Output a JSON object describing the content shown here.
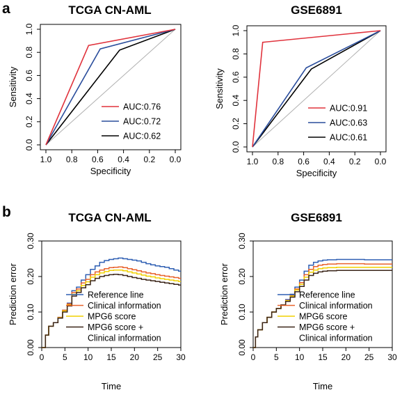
{
  "panel_labels": [
    "a",
    "b"
  ],
  "chart_data": [
    {
      "type": "line",
      "panel": "a",
      "title": "TCGA CN-AML",
      "xlabel": "Specificity",
      "ylabel": "Sensitivity",
      "xlim": [
        1.0,
        0.0
      ],
      "ylim": [
        0.0,
        1.0
      ],
      "xticks": [
        "1.0",
        "0.8",
        "0.6",
        "0.4",
        "0.2",
        "0.0"
      ],
      "yticks": [
        "0.0",
        "0.2",
        "0.4",
        "0.6",
        "0.8",
        "1.0"
      ],
      "legend_position": "bottom-right",
      "reference_diagonal": true,
      "series": [
        {
          "name": "AUC:0.76",
          "color": "#e0323c",
          "x": [
            1.0,
            0.67,
            0.0
          ],
          "y": [
            0.0,
            0.86,
            1.0
          ]
        },
        {
          "name": "AUC:0.72",
          "color": "#2a4d9c",
          "x": [
            1.0,
            0.58,
            0.0
          ],
          "y": [
            0.0,
            0.83,
            1.0
          ]
        },
        {
          "name": "AUC:0.62",
          "color": "#000000",
          "x": [
            1.0,
            0.43,
            0.0
          ],
          "y": [
            0.0,
            0.82,
            1.0
          ]
        }
      ]
    },
    {
      "type": "line",
      "panel": "a",
      "title": "GSE6891",
      "xlabel": "Specificity",
      "ylabel": "Sensitivity",
      "xlim": [
        1.0,
        0.0
      ],
      "ylim": [
        0.0,
        1.0
      ],
      "xticks": [
        "1.0",
        "0.8",
        "0.6",
        "0.4",
        "0.2",
        "0.0"
      ],
      "yticks": [
        "0.0",
        "0.2",
        "0.4",
        "0.6",
        "0.8",
        "1.0"
      ],
      "legend_position": "bottom-right",
      "reference_diagonal": true,
      "series": [
        {
          "name": "AUC:0.91",
          "color": "#e0323c",
          "x": [
            1.0,
            0.92,
            0.0
          ],
          "y": [
            0.0,
            0.9,
            1.0
          ]
        },
        {
          "name": "AUC:0.63",
          "color": "#2a4d9c",
          "x": [
            1.0,
            0.58,
            0.0
          ],
          "y": [
            0.0,
            0.68,
            1.0
          ]
        },
        {
          "name": "AUC:0.61",
          "color": "#000000",
          "x": [
            1.0,
            0.54,
            0.0
          ],
          "y": [
            0.0,
            0.67,
            1.0
          ]
        }
      ]
    },
    {
      "type": "line",
      "panel": "b",
      "title": "TCGA CN-AML",
      "xlabel": "Time",
      "ylabel": "Prediction error",
      "xlim": [
        0,
        30
      ],
      "ylim": [
        0.0,
        0.3
      ],
      "xticks": [
        "0",
        "5",
        "10",
        "15",
        "20",
        "25",
        "30"
      ],
      "yticks": [
        "0.00",
        "0.10",
        "0.20",
        "0.30"
      ],
      "legend_position": "bottom-right",
      "series": [
        {
          "name": "Reference line",
          "color": "#2f5fb3",
          "x": [
            0,
            0.8,
            1.5,
            2.5,
            3.5,
            4.5,
            5.5,
            6.5,
            7.5,
            8.5,
            9.5,
            10.5,
            11.5,
            12.5,
            13.5,
            14.5,
            15.5,
            16.5,
            17.5,
            18.5,
            19.5,
            20.5,
            21.5,
            22.5,
            23.5,
            24.5,
            25.5,
            26.5,
            27.5,
            28.5,
            29.5,
            30
          ],
          "y": [
            0.0,
            0.035,
            0.06,
            0.07,
            0.085,
            0.105,
            0.125,
            0.16,
            0.17,
            0.19,
            0.205,
            0.22,
            0.23,
            0.24,
            0.245,
            0.248,
            0.25,
            0.252,
            0.25,
            0.248,
            0.246,
            0.244,
            0.24,
            0.236,
            0.233,
            0.23,
            0.228,
            0.226,
            0.222,
            0.218,
            0.215,
            0.215
          ]
        },
        {
          "name": "Clinical information",
          "color": "#e8622c",
          "x": [
            0,
            0.8,
            1.5,
            2.5,
            3.5,
            4.5,
            5.5,
            6.5,
            7.5,
            8.5,
            9.5,
            10.5,
            11.5,
            12.5,
            13.5,
            14.5,
            15.5,
            16.5,
            17.5,
            18.5,
            19.5,
            20.5,
            21.5,
            22.5,
            23.5,
            24.5,
            25.5,
            26.5,
            27.5,
            28.5,
            29.5,
            30
          ],
          "y": [
            0.0,
            0.035,
            0.06,
            0.07,
            0.085,
            0.105,
            0.123,
            0.155,
            0.165,
            0.182,
            0.192,
            0.205,
            0.213,
            0.218,
            0.222,
            0.225,
            0.226,
            0.227,
            0.225,
            0.222,
            0.219,
            0.216,
            0.213,
            0.21,
            0.208,
            0.205,
            0.203,
            0.201,
            0.199,
            0.197,
            0.195,
            0.195
          ]
        },
        {
          "name": "MPG6 score",
          "color": "#f0d000",
          "x": [
            0,
            0.8,
            1.5,
            2.5,
            3.5,
            4.5,
            5.5,
            6.5,
            7.5,
            8.5,
            9.5,
            10.5,
            11.5,
            12.5,
            13.5,
            14.5,
            15.5,
            16.5,
            17.5,
            18.5,
            19.5,
            20.5,
            21.5,
            22.5,
            23.5,
            24.5,
            25.5,
            26.5,
            27.5,
            28.5,
            29.5,
            30
          ],
          "y": [
            0.0,
            0.035,
            0.06,
            0.07,
            0.084,
            0.103,
            0.12,
            0.15,
            0.16,
            0.175,
            0.185,
            0.198,
            0.205,
            0.21,
            0.214,
            0.217,
            0.218,
            0.218,
            0.216,
            0.213,
            0.21,
            0.207,
            0.204,
            0.201,
            0.199,
            0.196,
            0.194,
            0.192,
            0.19,
            0.188,
            0.186,
            0.186
          ]
        },
        {
          "name": "MPG6 score + Clinical information",
          "color": "#3a2418",
          "x": [
            0,
            0.8,
            1.5,
            2.5,
            3.5,
            4.5,
            5.5,
            6.5,
            7.5,
            8.5,
            9.5,
            10.5,
            11.5,
            12.5,
            13.5,
            14.5,
            15.5,
            16.5,
            17.5,
            18.5,
            19.5,
            20.5,
            21.5,
            22.5,
            23.5,
            24.5,
            25.5,
            26.5,
            27.5,
            28.5,
            29.5,
            30
          ],
          "y": [
            0.0,
            0.035,
            0.06,
            0.07,
            0.083,
            0.1,
            0.117,
            0.145,
            0.155,
            0.168,
            0.177,
            0.188,
            0.195,
            0.2,
            0.203,
            0.205,
            0.206,
            0.205,
            0.203,
            0.2,
            0.197,
            0.195,
            0.192,
            0.19,
            0.188,
            0.186,
            0.184,
            0.182,
            0.18,
            0.178,
            0.176,
            0.176
          ]
        }
      ]
    },
    {
      "type": "line",
      "panel": "b",
      "title": "GSE6891",
      "xlabel": "Time",
      "ylabel": "Prediction error",
      "xlim": [
        0,
        30
      ],
      "ylim": [
        0.0,
        0.3
      ],
      "xticks": [
        "0",
        "5",
        "10",
        "15",
        "20",
        "25",
        "30"
      ],
      "yticks": [
        "0.00",
        "0.10",
        "0.20",
        "0.30"
      ],
      "legend_position": "bottom-right",
      "series": [
        {
          "name": "Reference line",
          "color": "#2f5fb3",
          "x": [
            0,
            0.5,
            1,
            2,
            3,
            4,
            5,
            6,
            7,
            8,
            9,
            10,
            11,
            12,
            13,
            14,
            15,
            16,
            18,
            20,
            22,
            24,
            26,
            28,
            30
          ],
          "y": [
            0.0,
            0.03,
            0.05,
            0.07,
            0.085,
            0.1,
            0.11,
            0.12,
            0.135,
            0.15,
            0.17,
            0.19,
            0.215,
            0.232,
            0.24,
            0.244,
            0.246,
            0.247,
            0.248,
            0.248,
            0.248,
            0.247,
            0.247,
            0.247,
            0.247
          ]
        },
        {
          "name": "Clinical information",
          "color": "#e8622c",
          "x": [
            0,
            0.5,
            1,
            2,
            3,
            4,
            5,
            6,
            7,
            8,
            9,
            10,
            11,
            12,
            13,
            14,
            15,
            16,
            18,
            20,
            22,
            24,
            26,
            28,
            30
          ],
          "y": [
            0.0,
            0.03,
            0.05,
            0.07,
            0.085,
            0.1,
            0.11,
            0.12,
            0.133,
            0.147,
            0.165,
            0.183,
            0.205,
            0.22,
            0.228,
            0.232,
            0.234,
            0.235,
            0.236,
            0.236,
            0.236,
            0.235,
            0.235,
            0.235,
            0.235
          ]
        },
        {
          "name": "MPG6 score",
          "color": "#f0d000",
          "x": [
            0,
            0.5,
            1,
            2,
            3,
            4,
            5,
            6,
            7,
            8,
            9,
            10,
            11,
            12,
            13,
            14,
            15,
            16,
            18,
            20,
            22,
            24,
            26,
            28,
            30
          ],
          "y": [
            0.0,
            0.03,
            0.05,
            0.07,
            0.085,
            0.1,
            0.11,
            0.12,
            0.132,
            0.145,
            0.162,
            0.178,
            0.198,
            0.212,
            0.218,
            0.222,
            0.224,
            0.225,
            0.226,
            0.226,
            0.226,
            0.226,
            0.226,
            0.226,
            0.226
          ]
        },
        {
          "name": "MPG6 score + Clinical information",
          "color": "#3a2418",
          "x": [
            0,
            0.5,
            1,
            2,
            3,
            4,
            5,
            6,
            7,
            8,
            9,
            10,
            11,
            12,
            13,
            14,
            15,
            16,
            18,
            20,
            22,
            24,
            26,
            28,
            30
          ],
          "y": [
            0.0,
            0.03,
            0.05,
            0.07,
            0.085,
            0.1,
            0.11,
            0.12,
            0.13,
            0.142,
            0.157,
            0.172,
            0.19,
            0.203,
            0.209,
            0.213,
            0.215,
            0.216,
            0.217,
            0.217,
            0.217,
            0.217,
            0.217,
            0.217,
            0.217
          ]
        }
      ]
    }
  ]
}
